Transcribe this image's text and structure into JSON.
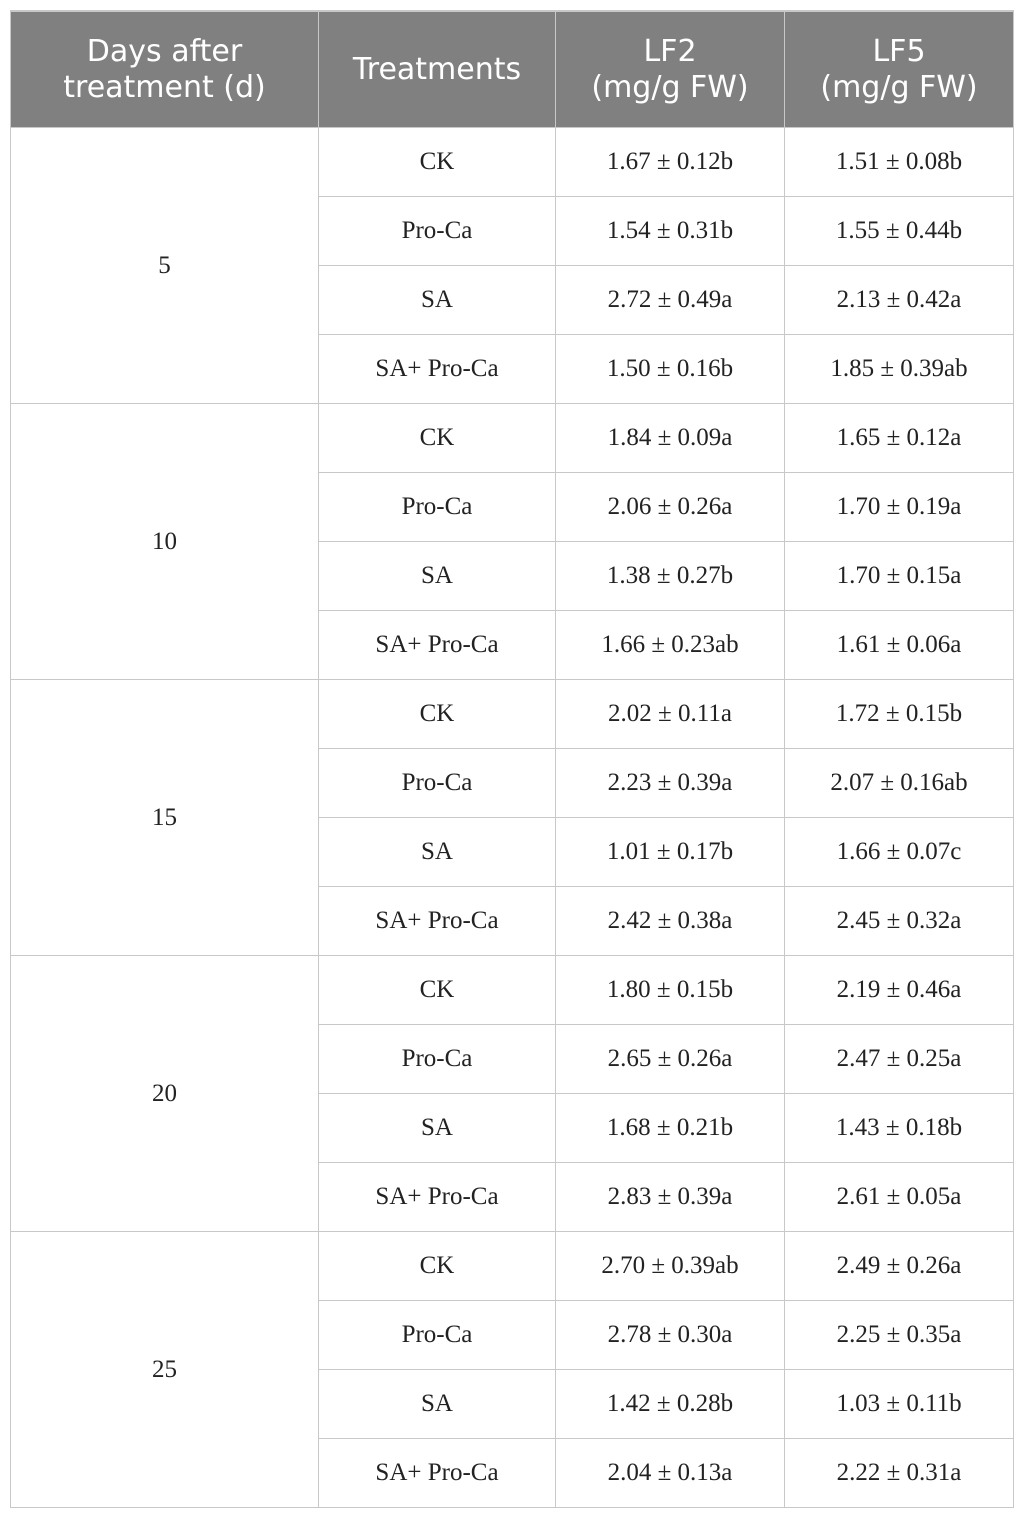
{
  "table": {
    "headers": [
      "Days after treatment (d)",
      "Treatments",
      "LF2 (mg/g FW)",
      "LF5 (mg/g FW)"
    ],
    "header_lines": [
      [
        "Days after",
        "treatment (d)"
      ],
      [
        "Treatments"
      ],
      [
        "LF2",
        "(mg/g FW)"
      ],
      [
        "LF5",
        "(mg/g FW)"
      ]
    ],
    "groups": [
      {
        "day": "5",
        "rows": [
          {
            "treatment": "CK",
            "lf2": "1.67 ± 0.12b",
            "lf5": "1.51 ± 0.08b"
          },
          {
            "treatment": "Pro-Ca",
            "lf2": "1.54 ± 0.31b",
            "lf5": "1.55 ± 0.44b"
          },
          {
            "treatment": "SA",
            "lf2": "2.72 ± 0.49a",
            "lf5": "2.13 ± 0.42a"
          },
          {
            "treatment": "SA+ Pro-Ca",
            "lf2": "1.50 ± 0.16b",
            "lf5": "1.85 ± 0.39ab"
          }
        ]
      },
      {
        "day": "10",
        "rows": [
          {
            "treatment": "CK",
            "lf2": "1.84 ± 0.09a",
            "lf5": "1.65 ± 0.12a"
          },
          {
            "treatment": "Pro-Ca",
            "lf2": "2.06 ± 0.26a",
            "lf5": "1.70 ± 0.19a"
          },
          {
            "treatment": "SA",
            "lf2": "1.38 ± 0.27b",
            "lf5": "1.70 ± 0.15a"
          },
          {
            "treatment": "SA+ Pro-Ca",
            "lf2": "1.66 ± 0.23ab",
            "lf5": "1.61 ± 0.06a"
          }
        ]
      },
      {
        "day": "15",
        "rows": [
          {
            "treatment": "CK",
            "lf2": "2.02 ± 0.11a",
            "lf5": "1.72 ± 0.15b"
          },
          {
            "treatment": "Pro-Ca",
            "lf2": "2.23 ± 0.39a",
            "lf5": "2.07 ± 0.16ab"
          },
          {
            "treatment": "SA",
            "lf2": "1.01 ± 0.17b",
            "lf5": "1.66 ± 0.07c"
          },
          {
            "treatment": "SA+ Pro-Ca",
            "lf2": "2.42 ± 0.38a",
            "lf5": "2.45 ± 0.32a"
          }
        ]
      },
      {
        "day": "20",
        "rows": [
          {
            "treatment": "CK",
            "lf2": "1.80 ± 0.15b",
            "lf5": "2.19 ± 0.46a"
          },
          {
            "treatment": "Pro-Ca",
            "lf2": "2.65 ± 0.26a",
            "lf5": "2.47 ± 0.25a"
          },
          {
            "treatment": "SA",
            "lf2": "1.68 ± 0.21b",
            "lf5": "1.43 ± 0.18b"
          },
          {
            "treatment": "SA+ Pro-Ca",
            "lf2": "2.83 ± 0.39a",
            "lf5": "2.61 ± 0.05a"
          }
        ]
      },
      {
        "day": "25",
        "rows": [
          {
            "treatment": "CK",
            "lf2": "2.70 ± 0.39ab",
            "lf5": "2.49 ± 0.26a"
          },
          {
            "treatment": "Pro-Ca",
            "lf2": "2.78 ± 0.30a",
            "lf5": "2.25 ± 0.35a"
          },
          {
            "treatment": "SA",
            "lf2": "1.42 ± 0.28b",
            "lf5": "1.03 ± 0.11b"
          },
          {
            "treatment": "SA+ Pro-Ca",
            "lf2": "2.04 ± 0.13a",
            "lf5": "2.22 ± 0.31a"
          }
        ]
      }
    ]
  },
  "colors": {
    "header_bg": "#808080",
    "header_text": "#ffffff",
    "border": "#c8c8c8"
  }
}
